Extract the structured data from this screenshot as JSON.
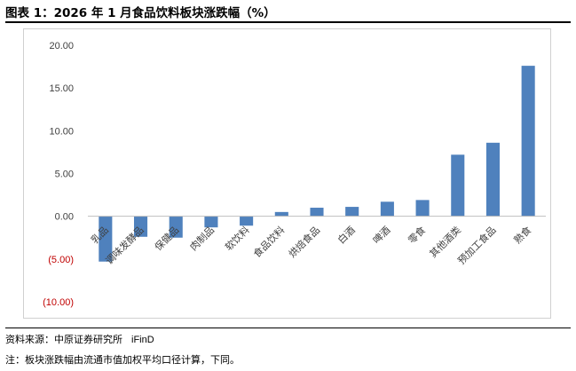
{
  "figure": {
    "title": "图表 1：2026 年 1 月食品饮料板块涨跌幅（%）",
    "source_label": "资料来源：中原证券研究所",
    "source_brand": "iFinD",
    "note": "注：板块涨跌幅由流通市值加权平均口径计算，下同。"
  },
  "colors": {
    "bar": "#4f81bd",
    "negative_tick": "#c00000",
    "axis": "#bfbfbf",
    "text": "#404040"
  },
  "chart_data": {
    "type": "bar",
    "title": "",
    "xlabel": "",
    "ylabel": "",
    "categories": [
      "乳品",
      "调味发酵品",
      "保健品",
      "肉制品",
      "软饮料",
      "食品饮料",
      "烘焙食品",
      "白酒",
      "啤酒",
      "零食",
      "其他酒类",
      "预加工食品",
      "熟食"
    ],
    "values": [
      -5.3,
      -2.4,
      -2.5,
      -1.3,
      -1.1,
      0.5,
      1.0,
      1.1,
      1.7,
      1.9,
      7.2,
      8.6,
      17.6
    ],
    "ylim": [
      -10,
      20
    ],
    "yticks": [
      20,
      15,
      10,
      5,
      0,
      -5,
      -10
    ],
    "ytick_labels": [
      "20.00",
      "15.00",
      "10.00",
      "5.00",
      "0.00",
      "(5.00)",
      "(10.00)"
    ],
    "grid": false,
    "legend": "none"
  }
}
